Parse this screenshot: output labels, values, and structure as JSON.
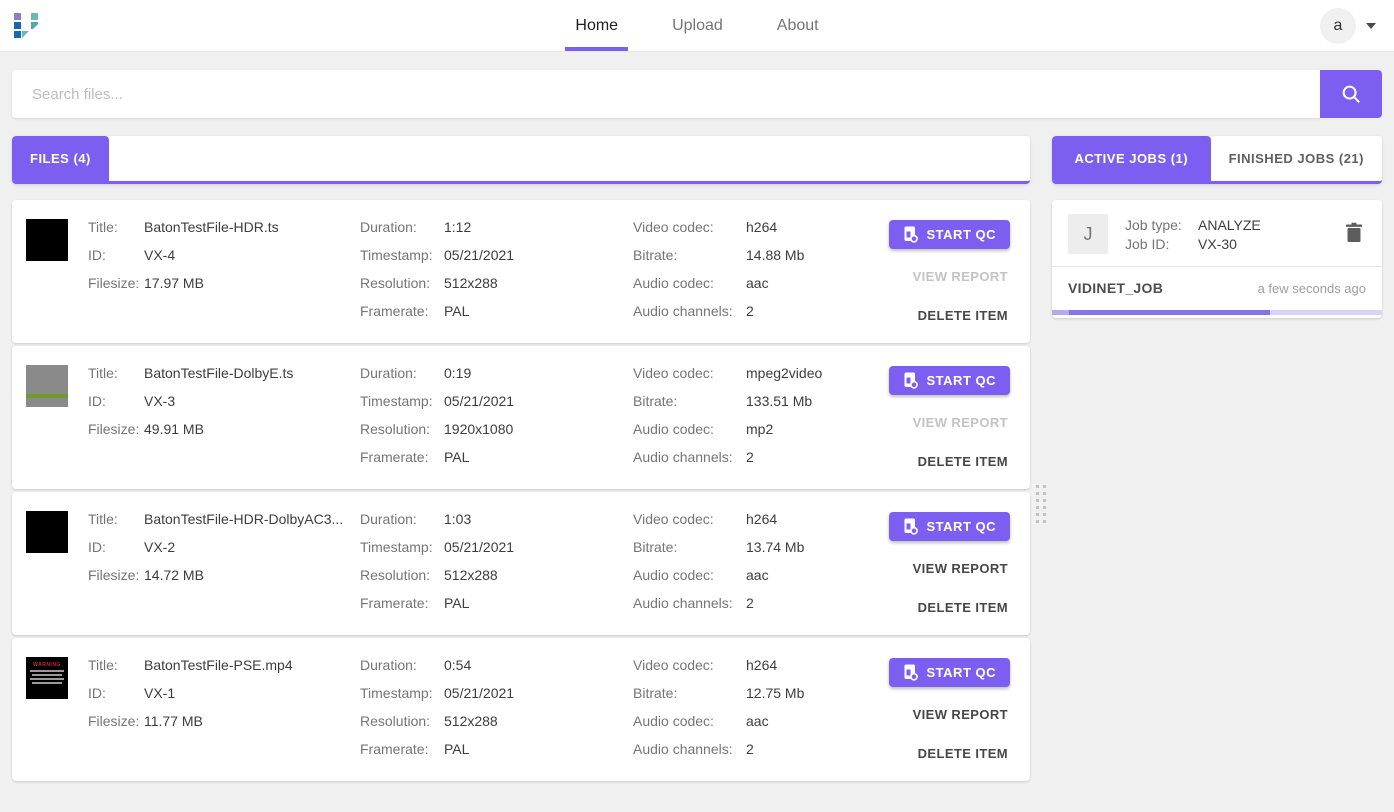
{
  "colors": {
    "accent": "#7c5ff0",
    "progress_fill": "#8374e8",
    "progress_track": "#d9d3f6"
  },
  "nav": {
    "tabs": [
      {
        "label": "Home",
        "active": true
      },
      {
        "label": "Upload",
        "active": false
      },
      {
        "label": "About",
        "active": false
      }
    ],
    "avatar_letter": "a"
  },
  "search": {
    "placeholder": "Search files..."
  },
  "labels": {
    "title": "Title:",
    "id": "ID:",
    "filesize": "Filesize:",
    "duration": "Duration:",
    "timestamp": "Timestamp:",
    "resolution": "Resolution:",
    "framerate": "Framerate:",
    "video_codec": "Video codec:",
    "bitrate": "Bitrate:",
    "audio_codec": "Audio codec:",
    "audio_channels": "Audio channels:"
  },
  "actions": {
    "start_qc": "START QC",
    "view_report": "VIEW REPORT",
    "delete_item": "DELETE ITEM"
  },
  "files_panel": {
    "tab_label": "FILES (4)"
  },
  "thumbnail_warning_title": "WARNING",
  "files": [
    {
      "title": "BatonTestFile-HDR.ts",
      "id": "VX-4",
      "filesize": "17.97 MB",
      "duration": "1:12",
      "timestamp": "05/21/2021",
      "resolution": "512x288",
      "framerate": "PAL",
      "video_codec": "h264",
      "bitrate": "14.88 Mb",
      "audio_codec": "aac",
      "audio_channels": "2",
      "view_report_enabled": false,
      "thumbnail": "black"
    },
    {
      "title": "BatonTestFile-DolbyE.ts",
      "id": "VX-3",
      "filesize": "49.91 MB",
      "duration": "0:19",
      "timestamp": "05/21/2021",
      "resolution": "1920x1080",
      "framerate": "PAL",
      "video_codec": "mpeg2video",
      "bitrate": "133.51 Mb",
      "audio_codec": "mp2",
      "audio_channels": "2",
      "view_report_enabled": false,
      "thumbnail": "gray-green"
    },
    {
      "title": "BatonTestFile-HDR-DolbyAC3...",
      "id": "VX-2",
      "filesize": "14.72 MB",
      "duration": "1:03",
      "timestamp": "05/21/2021",
      "resolution": "512x288",
      "framerate": "PAL",
      "video_codec": "h264",
      "bitrate": "13.74 Mb",
      "audio_codec": "aac",
      "audio_channels": "2",
      "view_report_enabled": true,
      "thumbnail": "black"
    },
    {
      "title": "BatonTestFile-PSE.mp4",
      "id": "VX-1",
      "filesize": "11.77 MB",
      "duration": "0:54",
      "timestamp": "05/21/2021",
      "resolution": "512x288",
      "framerate": "PAL",
      "video_codec": "h264",
      "bitrate": "12.75 Mb",
      "audio_codec": "aac",
      "audio_channels": "2",
      "view_report_enabled": true,
      "thumbnail": "warning"
    }
  ],
  "jobs_panel": {
    "tabs": [
      {
        "label": "ACTIVE JOBS (1)",
        "active": true
      },
      {
        "label": "FINISHED JOBS (21)",
        "active": false
      }
    ],
    "job": {
      "thumb_letter": "J",
      "job_type_label": "Job type:",
      "job_type": "ANALYZE",
      "job_id_label": "Job ID:",
      "job_id": "VX-30",
      "name": "VIDINET_JOB",
      "time_ago": "a few seconds ago",
      "progress": {
        "lead_percent": 5,
        "fill_percent": 61
      }
    }
  }
}
